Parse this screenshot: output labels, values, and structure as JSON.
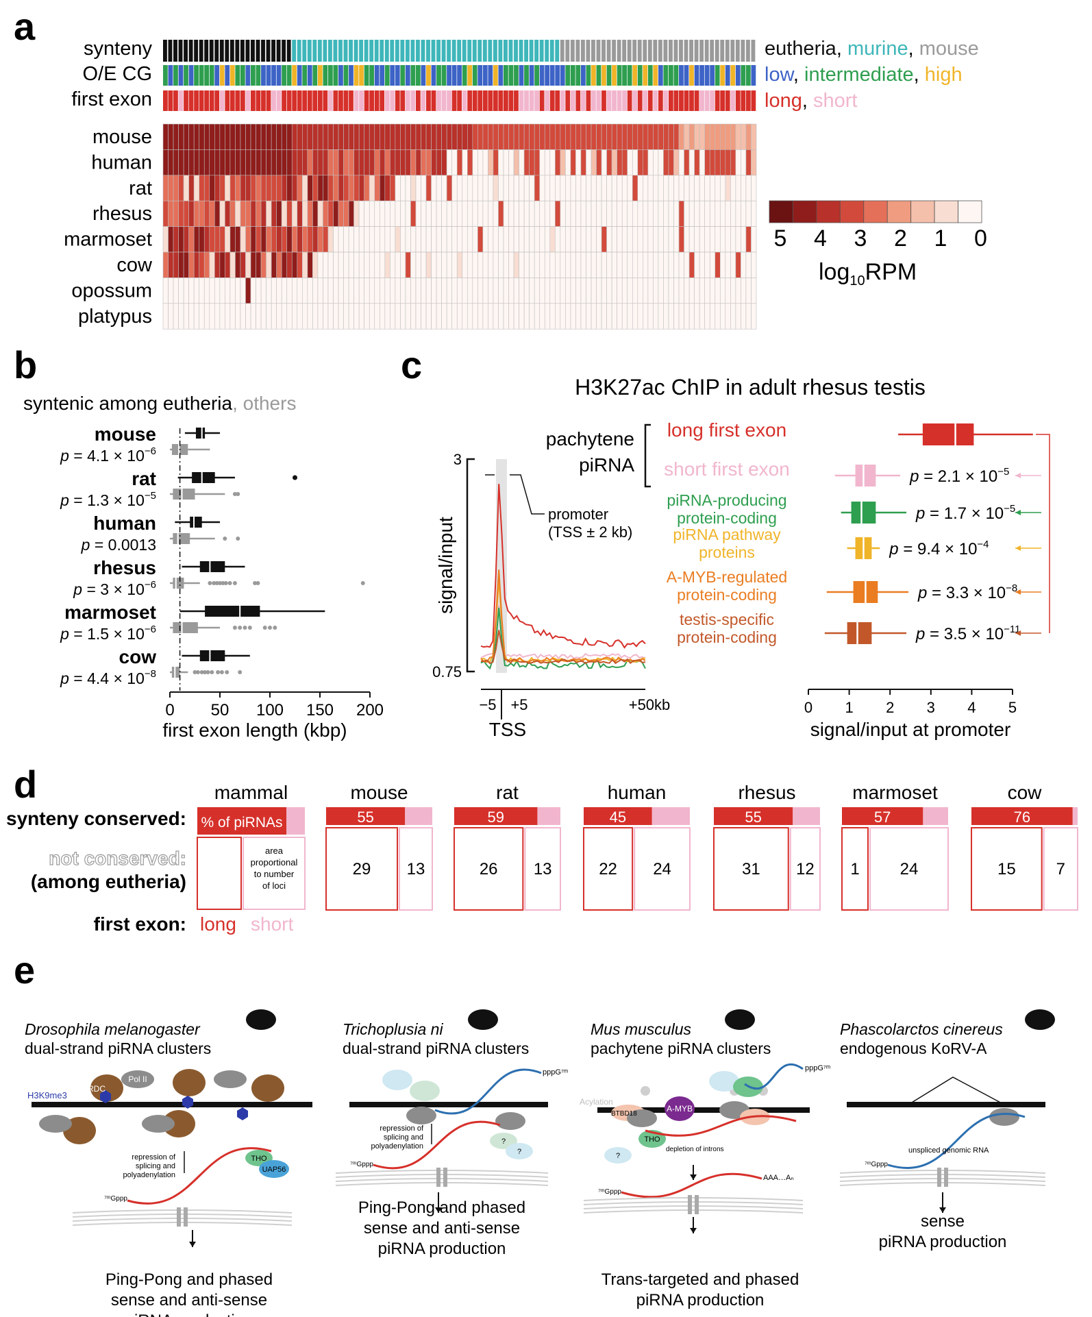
{
  "colors": {
    "heat": [
      "#fdf6f3",
      "#f8ddd2",
      "#f4bfab",
      "#ef9c80",
      "#e4705a",
      "#d24a3b",
      "#b8312a",
      "#8e1d1b",
      "#6b1212"
    ],
    "eutheria": "#111111",
    "murine": "#3fb6ba",
    "mouse": "#9a9a9a",
    "low": "#3d63c6",
    "intermediate": "#2e9e4f",
    "high": "#f0b429",
    "long": "#d6302a",
    "short": "#f1b6cd",
    "green": "#2e9e4f",
    "amber": "#f0b429",
    "orange": "#ea7d22",
    "brown": "#c2582a"
  },
  "panel_a": {
    "letter": "a",
    "track_labels": [
      "synteny",
      "O/E CG",
      "first exon"
    ],
    "species": [
      "mouse",
      "human",
      "rat",
      "rhesus",
      "marmoset",
      "cow",
      "opossum",
      "platypus"
    ],
    "legend_synteny": [
      "eutheria",
      ", ",
      "murine",
      ", ",
      "mouse"
    ],
    "legend_cg": [
      "low",
      ", ",
      "intermediate",
      ", ",
      "high"
    ],
    "legend_exon": [
      "long",
      ", ",
      "short"
    ],
    "colorbar_ticks": [
      "5",
      "4",
      "3",
      "2",
      "1",
      "0"
    ],
    "colorbar_label_main": "log",
    "colorbar_label_sub": "10",
    "colorbar_label_unit": "RPM",
    "n_columns": 115,
    "synteny_counts": {
      "eutheria": 25,
      "murine": 52,
      "mouse": 38
    }
  },
  "panel_b": {
    "letter": "b",
    "subtitle_a": "syntenic among eutheria",
    "subtitle_b": ", others",
    "species": [
      {
        "name": "mouse",
        "p": "p = 4.1 × 10",
        "exp": "−6",
        "syn": [
          15,
          26,
          32,
          35,
          50
        ],
        "oth": [
          0,
          2,
          9,
          18,
          40
        ]
      },
      {
        "name": "rat",
        "p": "p = 1.3 × 10",
        "exp": "−5",
        "syn": [
          8,
          22,
          32,
          45,
          65
        ],
        "oth": [
          0,
          3,
          12,
          25,
          55
        ],
        "out_syn": [
          125
        ],
        "out_oth": [
          65,
          68
        ]
      },
      {
        "name": "human",
        "p": "p = 0.0013",
        "exp": "",
        "syn": [
          5,
          20,
          24,
          32,
          50
        ],
        "oth": [
          0,
          3,
          8,
          20,
          45
        ],
        "out_oth": [
          55,
          68
        ]
      },
      {
        "name": "rhesus",
        "p": "p = 3 × 10",
        "exp": "−6",
        "syn": [
          12,
          30,
          40,
          55,
          75
        ],
        "oth": [
          0,
          3,
          6,
          14,
          30
        ],
        "out_oth": [
          40,
          44,
          47,
          50,
          53,
          56,
          60,
          65,
          85,
          88,
          193
        ]
      },
      {
        "name": "marmoset",
        "p": "p = 1.5 × 10",
        "exp": "−6",
        "syn": [
          10,
          35,
          70,
          90,
          155
        ],
        "oth": [
          0,
          3,
          12,
          28,
          50
        ],
        "out_oth": [
          65,
          70,
          75,
          80,
          95,
          100,
          105
        ]
      },
      {
        "name": "cow",
        "p": "p = 4.4 × 10",
        "exp": "−8",
        "syn": [
          12,
          30,
          40,
          55,
          80
        ],
        "oth": [
          0,
          2,
          5,
          10,
          18
        ],
        "out_oth": [
          25,
          28,
          32,
          35,
          38,
          42,
          48,
          52,
          57,
          70
        ]
      }
    ],
    "xticks": [
      0,
      50,
      100,
      150,
      200
    ],
    "xlabel": "first exon length (kbp)",
    "xlim": [
      0,
      210
    ]
  },
  "panel_c": {
    "letter": "c",
    "title": "H3K27ac ChIP in adult rhesus testis",
    "group_label_1": "pachytene",
    "group_label_2": "piRNA",
    "categories": [
      {
        "l1": "long first exon",
        "l2": "",
        "color": "#d6302a",
        "box": [
          2.2,
          2.8,
          3.6,
          4.05,
          5.5
        ],
        "p": "",
        "exp": ""
      },
      {
        "l1": "short first exon",
        "l2": "",
        "color": "#f1b6cd",
        "box": [
          0.65,
          1.15,
          1.35,
          1.65,
          2.25
        ],
        "p": "p = 2.1 × 10",
        "exp": "−5"
      },
      {
        "l1": "piRNA-producing",
        "l2": "protein-coding",
        "color": "#2e9e4f",
        "box": [
          0.8,
          1.05,
          1.3,
          1.65,
          2.4
        ],
        "p": "p = 1.7 × 10",
        "exp": "−5"
      },
      {
        "l1": "piRNA pathway",
        "l2": "proteins",
        "color": "#f0b429",
        "box": [
          0.95,
          1.15,
          1.35,
          1.55,
          1.75
        ],
        "p": "p = 9.4 × 10",
        "exp": "−4"
      },
      {
        "l1": "A-MYB-regulated",
        "l2": "protein-coding",
        "color": "#ea7d22",
        "box": [
          0.45,
          1.1,
          1.4,
          1.7,
          2.45
        ],
        "p": "p = 3.3 × 10",
        "exp": "−8"
      },
      {
        "l1": "testis-specific",
        "l2": "protein-coding",
        "color": "#c2582a",
        "box": [
          0.4,
          0.95,
          1.2,
          1.55,
          2.4
        ],
        "p": "p = 3.5 × 10",
        "exp": "−11"
      }
    ],
    "profile_ylabel": "signal/input",
    "profile_yticks": [
      "3",
      "0.75"
    ],
    "profile_xticks": [
      "−5",
      "+5",
      "+50kb"
    ],
    "profile_tss": "TSS",
    "promoter_label_1": "promoter",
    "promoter_label_2": "(TSS ± 2 kb)",
    "box_xticks": [
      "0",
      "1",
      "2",
      "3",
      "4",
      "5"
    ],
    "box_xlabel": "signal/input at promoter"
  },
  "panel_d": {
    "letter": "d",
    "row_label_1": "synteny conserved:",
    "row_label_2": "not conserved:",
    "row_label_3": "(among eutheria)",
    "row_label_4": "first exon:",
    "legend_long": "long",
    "legend_short": "short",
    "mammal": {
      "name": "mammal",
      "bar_text": "% of piRNAs",
      "area_text": [
        "area",
        "proportional",
        "to number",
        "of loci"
      ]
    },
    "species": [
      {
        "name": "mouse",
        "pct": "55",
        "long": "29",
        "short": "13"
      },
      {
        "name": "rat",
        "pct": "59",
        "long": "26",
        "short": "13"
      },
      {
        "name": "human",
        "pct": "45",
        "long": "22",
        "short": "24"
      },
      {
        "name": "rhesus",
        "pct": "55",
        "long": "31",
        "short": "12"
      },
      {
        "name": "marmoset",
        "pct": "57",
        "long": "1",
        "short": "24"
      },
      {
        "name": "cow",
        "pct": "76",
        "long": "15",
        "short": "7"
      }
    ]
  },
  "panel_e": {
    "letter": "e",
    "models": [
      {
        "species": "Drosophila melanogaster",
        "desc": "dual-strand piRNA clusters",
        "out": [
          "Ping-Pong and phased",
          "sense and anti-sense",
          "piRNA production"
        ],
        "labels": {
          "rdc": "RDC",
          "pol2": "Pol II",
          "h3k9": "H3K9me3",
          "repr": [
            "repression of",
            "splicing and",
            "polyadenylation"
          ],
          "tho": "THO",
          "uap": "UAP56",
          "cap": "⁷ᵐGppp"
        }
      },
      {
        "species": "Trichoplusia ni",
        "desc": "dual-strand piRNA clusters",
        "out": [
          "Ping-Pong and phased",
          "sense and anti-sense",
          "piRNA production"
        ],
        "labels": {
          "repr": [
            "repression of",
            "splicing and",
            "polyadenylation"
          ],
          "q": "?",
          "cap": "⁷ᵐGppp",
          "ppp": "pppG⁷ᵐ"
        }
      },
      {
        "species": "Mus musculus",
        "desc": "pachytene piRNA clusters",
        "out": [
          "Trans-targeted and phased",
          "piRNA production"
        ],
        "labels": {
          "acyl": "Acylation",
          "btbd": "BTBD18",
          "amyb": "A-MYB",
          "tho": "THO",
          "q": "?",
          "depl": "depletion of introns",
          "aaa": "AAA…Aₙ",
          "cap": "⁷ᵐGppp",
          "ppp": "pppG⁷ᵐ"
        }
      },
      {
        "species": "Phascolarctos cinereus",
        "desc": "endogenous KoRV-A",
        "out": [
          "sense",
          "piRNA production"
        ],
        "labels": {
          "unsp": "unspliced genomic RNA",
          "cap": "⁷ᵐGppp"
        }
      }
    ]
  }
}
